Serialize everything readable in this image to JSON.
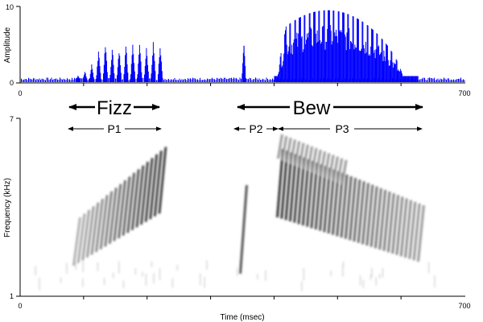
{
  "colors": {
    "waveform": "#0000ff",
    "axis": "#000000",
    "spectrogram_dark": "#111111"
  },
  "waveform": {
    "ylabel": "Amplitude",
    "yticks": [
      "0",
      "10"
    ],
    "xticks": [
      "0",
      "700"
    ],
    "xlim": [
      0,
      700
    ],
    "ylim": [
      0,
      10
    ]
  },
  "spectrogram": {
    "ylabel": "Frequency (kHz)",
    "xlabel": "Time (msec)",
    "yticks": [
      "1",
      "7"
    ],
    "xticks": [
      "0",
      "700"
    ],
    "xlim": [
      0,
      700
    ],
    "ylim": [
      1,
      7
    ]
  },
  "words": [
    {
      "label": "Fizz",
      "start_ms": 80,
      "end_ms": 225
    },
    {
      "label": "Bew",
      "start_ms": 340,
      "end_ms": 620
    }
  ],
  "phases": [
    {
      "label": "P1",
      "start_ms": 80,
      "end_ms": 225
    },
    {
      "label": "P2",
      "start_ms": 340,
      "end_ms": 395
    },
    {
      "label": "P3",
      "start_ms": 395,
      "end_ms": 620
    }
  ]
}
